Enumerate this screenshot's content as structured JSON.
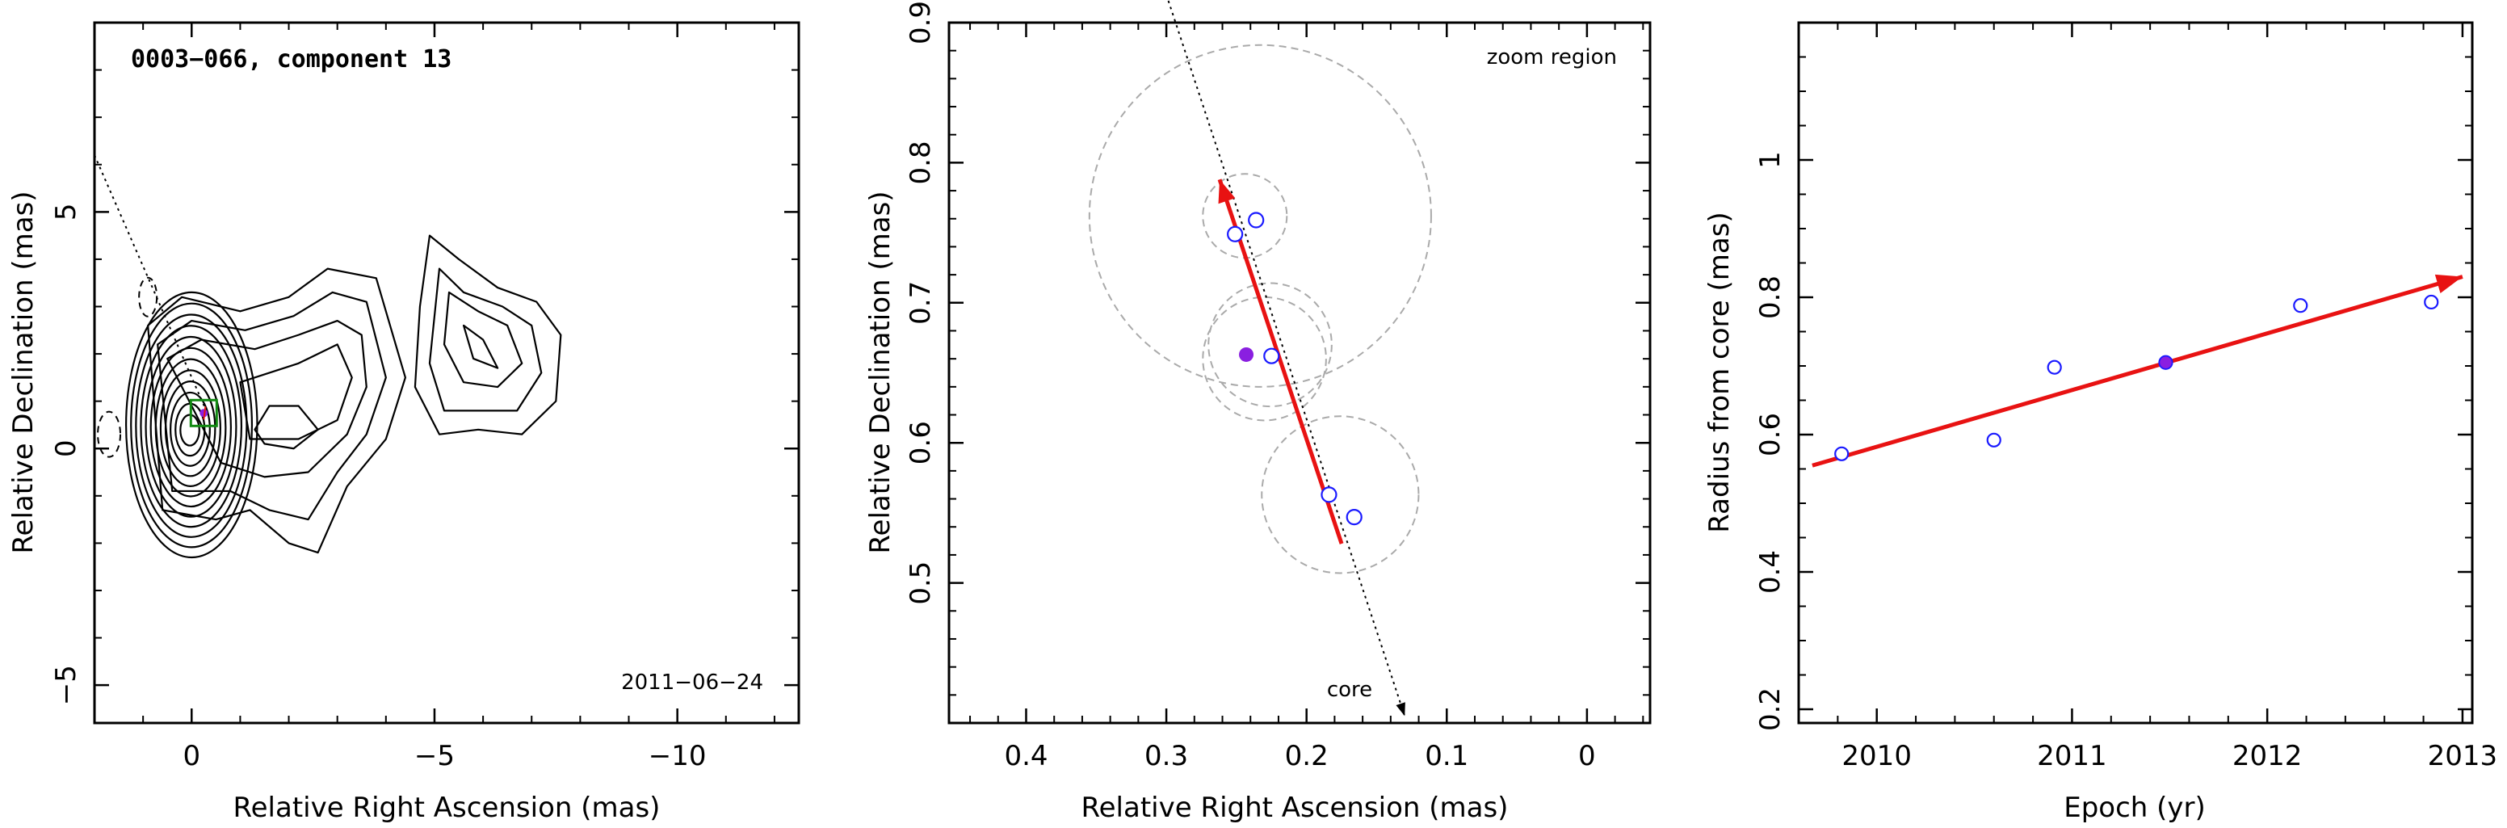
{
  "chart_data": [
    {
      "type": "contour",
      "annotation_title": "0003−066, component 13",
      "annotation_date": "2011−06−24",
      "xlabel": "Relative Right Ascension (mas)",
      "ylabel": "Relative Declination (mas)",
      "xlim": [
        2,
        -12.5
      ],
      "ylim": [
        -5.8,
        9
      ],
      "xticks": [
        0,
        -5,
        -10
      ],
      "xtick_labels": [
        "0",
        "−5",
        "−10"
      ],
      "yticks": [
        -5,
        0,
        5
      ],
      "ytick_labels": [
        "−5",
        "0",
        "5"
      ],
      "core": {
        "x": 0,
        "y": 0.5
      },
      "component_marker": {
        "x": -0.25,
        "y": 0.75
      },
      "direction_line": [
        [
          2,
          6.2
        ],
        [
          -0.3,
          0.8
        ]
      ]
    },
    {
      "type": "scatter",
      "annotation": "zoom region",
      "core_label": "core",
      "xlabel": "Relative Right Ascension (mas)",
      "ylabel": "Relative Declination (mas)",
      "xlim": [
        0.455,
        -0.045
      ],
      "ylim": [
        0.4,
        0.9
      ],
      "xticks": [
        0.4,
        0.3,
        0.2,
        0.1,
        0
      ],
      "xtick_labels": [
        "0.4",
        "0.3",
        "0.2",
        "0.1",
        "0"
      ],
      "yticks": [
        0.5,
        0.6,
        0.7,
        0.8,
        0.9
      ],
      "ytick_labels": [
        "0.5",
        "0.6",
        "0.7",
        "0.8",
        "0.9"
      ],
      "points": [
        {
          "x": 0.251,
          "y": 0.749
        },
        {
          "x": 0.236,
          "y": 0.759
        },
        {
          "x": 0.225,
          "y": 0.662
        },
        {
          "x": 0.184,
          "y": 0.563
        },
        {
          "x": 0.166,
          "y": 0.547
        }
      ],
      "highlight_point": {
        "x": 0.243,
        "y": 0.663
      },
      "error_circles": [
        {
          "x": 0.244,
          "y": 0.762,
          "r": 0.03
        },
        {
          "x": 0.226,
          "y": 0.67,
          "r": 0.044
        },
        {
          "x": 0.23,
          "y": 0.66,
          "r": 0.044
        },
        {
          "x": 0.176,
          "y": 0.563,
          "r": 0.056
        },
        {
          "x": 0.233,
          "y": 0.762,
          "r": 0.122
        }
      ],
      "motion_vector": {
        "from": [
          0.175,
          0.528
        ],
        "to": [
          0.262,
          0.788
        ]
      },
      "direction_line": {
        "from": [
          0.3,
          0.92
        ],
        "to": [
          0.13,
          0.405
        ]
      }
    },
    {
      "type": "scatter",
      "xlabel": "Epoch (yr)",
      "ylabel": "Radius from core (mas)",
      "xlim": [
        2009.6,
        2013.05
      ],
      "ylim": [
        0.18,
        1.2
      ],
      "xticks": [
        2010,
        2011,
        2012,
        2013
      ],
      "xtick_labels": [
        "2010",
        "2011",
        "2012",
        "2013"
      ],
      "yticks": [
        0.2,
        0.4,
        0.6,
        0.8,
        1.0
      ],
      "ytick_labels": [
        "0.2",
        "0.4",
        "0.6",
        "0.8",
        "1"
      ],
      "points": [
        {
          "x": 2009.82,
          "y": 0.572
        },
        {
          "x": 2010.6,
          "y": 0.592
        },
        {
          "x": 2010.91,
          "y": 0.698
        },
        {
          "x": 2011.48,
          "y": 0.705
        },
        {
          "x": 2012.17,
          "y": 0.788
        },
        {
          "x": 2012.84,
          "y": 0.793
        }
      ],
      "highlight_point": {
        "x": 2011.48,
        "y": 0.705
      },
      "fit_vector": {
        "from": [
          2009.67,
          0.555
        ],
        "to": [
          2013.0,
          0.83
        ]
      }
    }
  ],
  "colors": {
    "open_marker": "#1a1aff",
    "highlight": "#8a1fe0",
    "vector": "#e81212",
    "circle": "#aaaaaa",
    "box": "#128a12"
  }
}
